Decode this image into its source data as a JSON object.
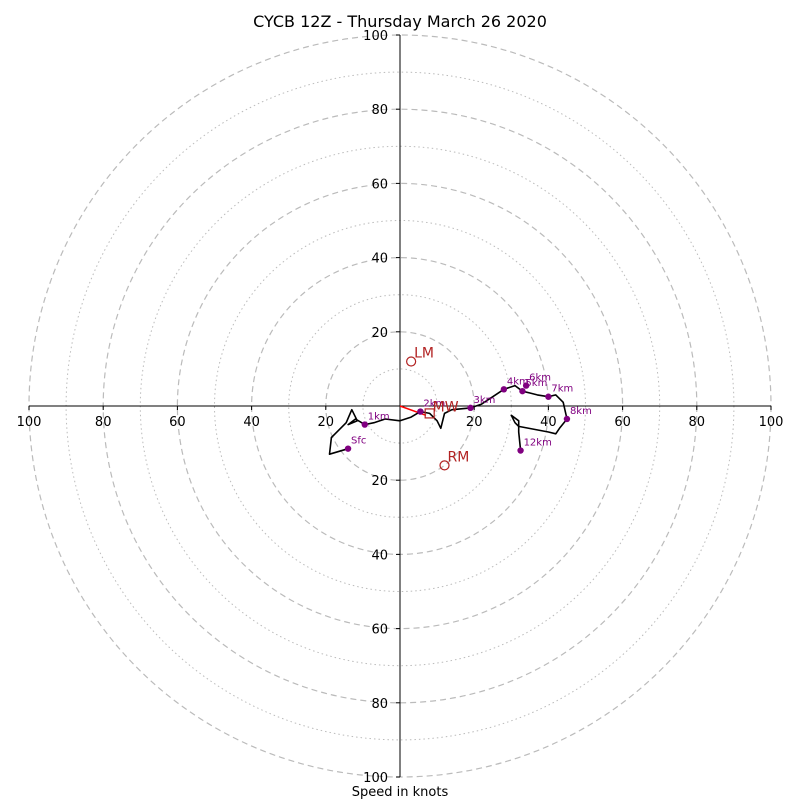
{
  "chart_data": {
    "type": "hodograph",
    "title": "CYCB 12Z - Thursday March 26 2020",
    "xlabel": "Speed in knots",
    "ylabel": "",
    "xlim": [
      -100,
      100
    ],
    "ylim": [
      -100,
      100
    ],
    "rings_dashed": [
      20,
      40,
      60,
      80,
      100
    ],
    "rings_dotted": [
      10,
      30,
      50,
      70,
      90
    ],
    "x_tick_labels": [
      "100",
      "80",
      "60",
      "40",
      "20",
      "20",
      "40",
      "60",
      "80",
      "100"
    ],
    "y_tick_labels": [
      "100",
      "80",
      "60",
      "40",
      "20",
      "20",
      "40",
      "60",
      "80",
      "100"
    ],
    "hodograph_trace": [
      [
        -14,
        -11.5
      ],
      [
        -19,
        -13
      ],
      [
        -18.5,
        -8.5
      ],
      [
        -17.5,
        -7.5
      ],
      [
        -14.5,
        -4.5
      ],
      [
        -13,
        -1
      ],
      [
        -11.5,
        -4
      ],
      [
        -14,
        -5
      ],
      [
        -12,
        -3.5
      ],
      [
        -9.5,
        -5
      ],
      [
        -7,
        -4.5
      ],
      [
        -4,
        -3.5
      ],
      [
        0,
        -4
      ],
      [
        3,
        -3
      ],
      [
        5.5,
        -1.5
      ],
      [
        8,
        -2
      ],
      [
        10,
        -4
      ],
      [
        11,
        -6
      ],
      [
        12,
        -2
      ],
      [
        14,
        -1
      ],
      [
        19,
        -0.5
      ],
      [
        22,
        0.5
      ],
      [
        25,
        2.5
      ],
      [
        28,
        4.5
      ],
      [
        31,
        5.5
      ],
      [
        33,
        4
      ],
      [
        35,
        3.5
      ],
      [
        37,
        3
      ],
      [
        40,
        2.5
      ],
      [
        42,
        3
      ],
      [
        44,
        1
      ],
      [
        45,
        -3.5
      ],
      [
        43,
        -6
      ],
      [
        42,
        -7.5
      ],
      [
        40,
        -7
      ],
      [
        32,
        -5.5
      ],
      [
        31,
        -4.5
      ],
      [
        30,
        -2.5
      ],
      [
        32,
        -4
      ],
      [
        32,
        -7
      ],
      [
        32.5,
        -12
      ]
    ],
    "height_markers": [
      {
        "label": "Sfc",
        "u": -14,
        "v": -11.5
      },
      {
        "label": "1km",
        "u": -9.5,
        "v": -5
      },
      {
        "label": "2km",
        "u": 5.5,
        "v": -1.5
      },
      {
        "label": "3km",
        "u": 19,
        "v": -0.5
      },
      {
        "label": "4km",
        "u": 28,
        "v": 4.5
      },
      {
        "label": "5km",
        "u": 33,
        "v": 4
      },
      {
        "label": "6km",
        "u": 34,
        "v": 5.5
      },
      {
        "label": "7km",
        "u": 40,
        "v": 2.5
      },
      {
        "label": "8km",
        "u": 45,
        "v": -3.5
      },
      {
        "label": "12km",
        "u": 32.5,
        "v": -12
      }
    ],
    "storm_motion": {
      "LM": {
        "label": "LM",
        "u": 3,
        "v": 12
      },
      "RM": {
        "label": "RM",
        "u": 12,
        "v": -16
      },
      "MW": {
        "label": "MW",
        "u": 8,
        "v": -2
      }
    },
    "shear_vector": {
      "u0": 0,
      "v0": 0,
      "u1": 7,
      "v1": -2.5
    },
    "colors": {
      "ring": "#bbbbbb",
      "axis": "#000000",
      "trace": "#000000",
      "marker": "#800080",
      "storm": "#b22222",
      "shear": "#ff0000"
    }
  }
}
